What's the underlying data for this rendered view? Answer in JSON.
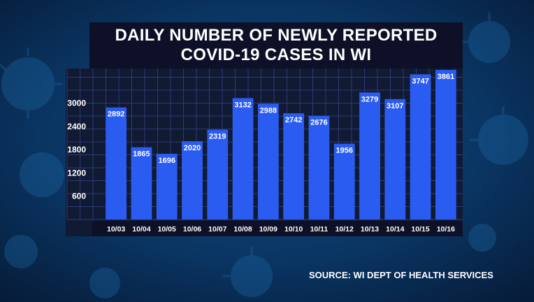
{
  "title": {
    "line1": "DAILY NUMBER OF NEWLY REPORTED",
    "line2": "COVID-19 CASES IN WI"
  },
  "source": "SOURCE: WI DEPT OF HEALTH SERVICES",
  "colors": {
    "bar": "#2b5cf2",
    "panel": "#111a33",
    "grid": "#2c3a78",
    "background": "#0a3a6a",
    "text": "#ffffff"
  },
  "chart_data": {
    "type": "bar",
    "title": "DAILY NUMBER OF NEWLY REPORTED COVID-19 CASES IN WI",
    "categories": [
      "10/03",
      "10/04",
      "10/05",
      "10/06",
      "10/07",
      "10/08",
      "10/09",
      "10/10",
      "10/11",
      "10/12",
      "10/13",
      "10/14",
      "10/15",
      "10/16"
    ],
    "values": [
      2892,
      1865,
      1696,
      2020,
      2319,
      3132,
      2988,
      2742,
      2676,
      1956,
      3279,
      3107,
      3747,
      3861
    ],
    "yticks": [
      600,
      1200,
      1800,
      2400,
      3000
    ],
    "ylim": [
      0,
      3900
    ],
    "grid": true,
    "data_labels": true,
    "legend": "none"
  }
}
